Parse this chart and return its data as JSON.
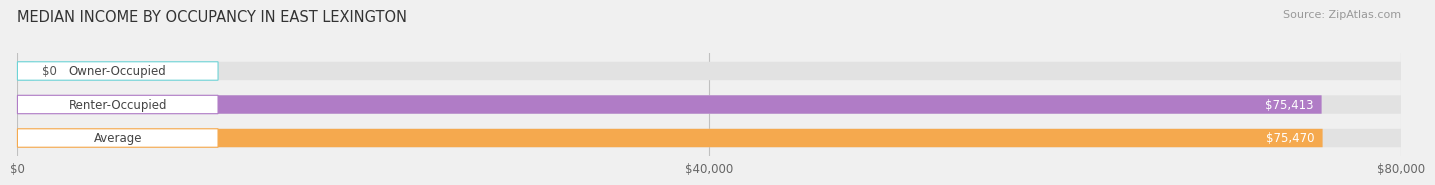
{
  "title": "MEDIAN INCOME BY OCCUPANCY IN EAST LEXINGTON",
  "source": "Source: ZipAtlas.com",
  "categories": [
    "Owner-Occupied",
    "Renter-Occupied",
    "Average"
  ],
  "values": [
    0,
    75413,
    75470
  ],
  "bar_colors": [
    "#6dd3d6",
    "#b07cc6",
    "#f5a94e"
  ],
  "value_labels": [
    "$0",
    "$75,413",
    "$75,470"
  ],
  "xlim": [
    0,
    80000
  ],
  "xtick_values": [
    0,
    40000,
    80000
  ],
  "xtick_labels": [
    "$0",
    "$40,000",
    "$80,000"
  ],
  "bar_height": 0.55,
  "background_color": "#f0f0f0",
  "bar_bg_color": "#e2e2e2",
  "title_fontsize": 10.5,
  "source_fontsize": 8,
  "label_fontsize": 8.5,
  "value_fontsize": 8.5
}
